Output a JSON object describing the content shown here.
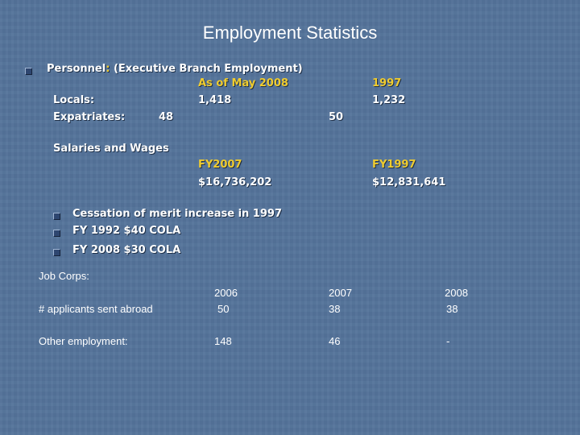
{
  "slide": {
    "title": "Employment Statistics",
    "personnel": {
      "label": "Personnel",
      "colon": ":",
      "qualifier": "(Executive Branch Employment)",
      "col_may2008": "As of May 2008",
      "col_1997": "1997",
      "locals_label": "Locals:",
      "locals_may2008": "1,418",
      "locals_1997": "1,232",
      "expat_label": "Expatriates:",
      "expat_may2008": "48",
      "expat_1997": "50"
    },
    "salaries": {
      "label": "Salaries and Wages",
      "col_fy2007": "FY2007",
      "col_fy1997": "FY1997",
      "val_fy2007": "$16,736,202",
      "val_fy1997": "$12,831,641"
    },
    "sub_bullets": [
      "Cessation of merit increase in 1997",
      "FY 1992 $40 COLA",
      "FY 2008 $30 COLA"
    ],
    "job_corps": {
      "label": "Job Corps:",
      "years": [
        "2006",
        "2007",
        "2008"
      ],
      "rows": [
        {
          "label": "# applicants sent abroad",
          "values": [
            "50",
            "38",
            "38"
          ]
        },
        {
          "label": "Other employment:",
          "values": [
            "148",
            "46",
            "-"
          ]
        }
      ]
    },
    "colors": {
      "background": "#54739a",
      "text": "#ffffff",
      "highlight": "#f0cc2e",
      "bullet": "#2e4670"
    }
  }
}
